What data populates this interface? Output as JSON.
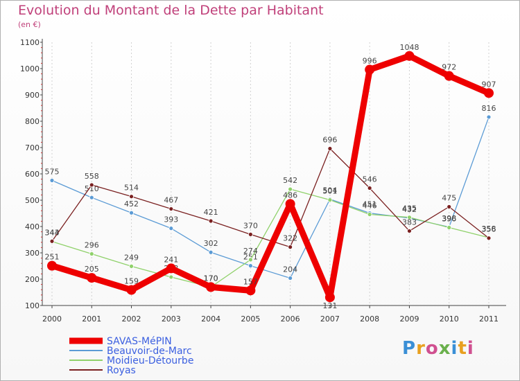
{
  "title": "Evolution du Montant de la Dette par Habitant",
  "subtitle": "(en €)",
  "logo_text": "Proxiti",
  "chart_data": {
    "type": "line",
    "title": "Evolution du Montant de la Dette par Habitant",
    "ylabel": "(en €)",
    "x": [
      "2000",
      "2001",
      "2002",
      "2003",
      "2004",
      "2005",
      "2006",
      "2007",
      "2008",
      "2009",
      "2010",
      "2011"
    ],
    "ylim": [
      100,
      1100
    ],
    "yticks": [
      100,
      200,
      300,
      400,
      500,
      600,
      700,
      800,
      900,
      1000,
      1100
    ],
    "grid": false,
    "legend_position": "bottom-left",
    "series": [
      {
        "name": "SAVAS-MéPIN",
        "color": "#ee0000",
        "values": [
          251,
          205,
          159,
          241,
          170,
          157,
          486,
          131,
          996,
          1048,
          972,
          907
        ]
      },
      {
        "name": "Beauvoir-de-Marc",
        "color": "#5b9bd5",
        "values": [
          575,
          510,
          452,
          393,
          302,
          251,
          204,
          504,
          451,
          432,
          398,
          816
        ]
      },
      {
        "name": "Moidieu-Détourbe",
        "color": "#8fd16a",
        "values": [
          343,
          296,
          249,
          208,
          170,
          274,
          542,
          501,
          446,
          435,
          396,
          358
        ]
      },
      {
        "name": "Royas",
        "color": "#7a2020",
        "values": [
          344,
          558,
          514,
          467,
          421,
          370,
          322,
          696,
          546,
          383,
          475,
          356
        ]
      }
    ]
  }
}
